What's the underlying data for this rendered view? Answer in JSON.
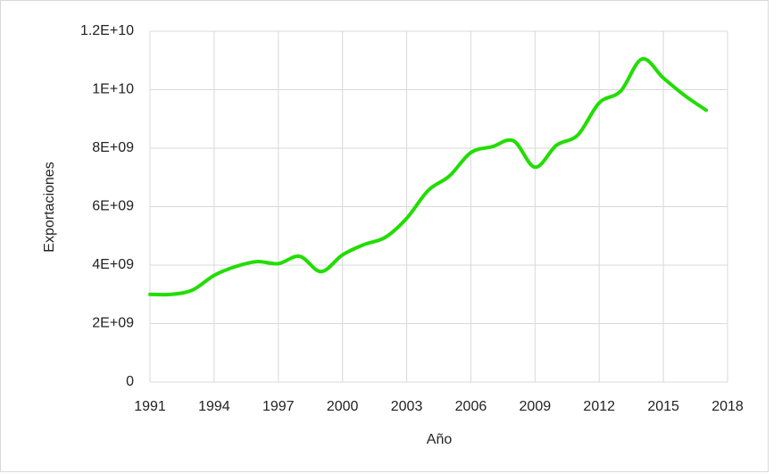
{
  "chart_data": {
    "type": "line",
    "x_label": "Año",
    "y_label": "Exportaciones",
    "x": [
      1991,
      1992,
      1993,
      1994,
      1995,
      1996,
      1997,
      1998,
      1999,
      2000,
      2001,
      2002,
      2003,
      2004,
      2005,
      2006,
      2007,
      2008,
      2009,
      2010,
      2011,
      2012,
      2013,
      2014,
      2015,
      2016,
      2017
    ],
    "series": [
      {
        "name": "Exportaciones",
        "color": "#22dd00",
        "values": [
          3000000000,
          3000000000,
          3150000000,
          3650000000,
          3950000000,
          4120000000,
          4050000000,
          4300000000,
          3780000000,
          4350000000,
          4700000000,
          4950000000,
          5600000000,
          6550000000,
          7050000000,
          7850000000,
          8050000000,
          8250000000,
          7350000000,
          8100000000,
          8450000000,
          9550000000,
          9950000000,
          11050000000,
          10400000000,
          9800000000,
          9300000000
        ]
      }
    ],
    "xlim": [
      1991,
      2018
    ],
    "xticks": [
      1991,
      1994,
      1997,
      2000,
      2003,
      2006,
      2009,
      2012,
      2015,
      2018
    ],
    "ylim": [
      0,
      12000000000
    ],
    "yticks": [
      0,
      {
        "value": 2000000000,
        "label": "2E+09"
      },
      {
        "value": 4000000000,
        "label": "4E+09"
      },
      {
        "value": 6000000000,
        "label": "6E+09"
      },
      {
        "value": 8000000000,
        "label": "8E+09"
      },
      {
        "value": 10000000000,
        "label": "1E+10"
      },
      {
        "value": 12000000000,
        "label": "1.2E+10"
      }
    ],
    "grid": true
  }
}
